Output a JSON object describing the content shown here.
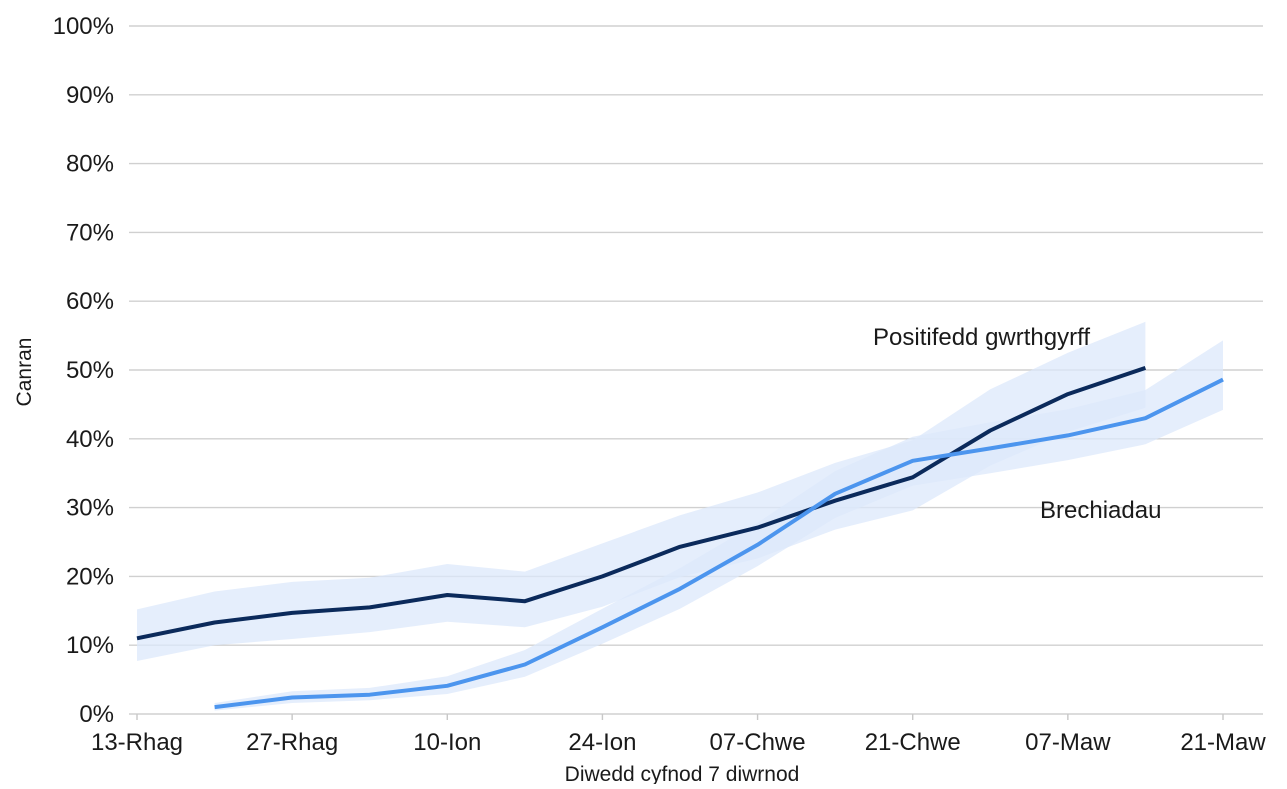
{
  "chart_data": {
    "type": "line",
    "title": "",
    "xlabel": "Diwedd cyfnod 7 diwrnod",
    "ylabel": "Canran",
    "grid": true,
    "legend": "none (series labelled inline)",
    "ylim": [
      0,
      100
    ],
    "yticks": [
      "0%",
      "10%",
      "20%",
      "30%",
      "40%",
      "50%",
      "60%",
      "70%",
      "80%",
      "90%",
      "100%"
    ],
    "categories": [
      "13-Rhag",
      "20-Rhag",
      "27-Rhag",
      "03-Ion",
      "10-Ion",
      "17-Ion",
      "24-Ion",
      "31-Ion",
      "07-Chwe",
      "14-Chwe",
      "21-Chwe",
      "28-Chwe",
      "07-Maw",
      "14-Maw",
      "21-Maw"
    ],
    "tick_labels": [
      "13-Rhag",
      "27-Rhag",
      "10-Ion",
      "24-Ion",
      "07-Chwe",
      "21-Chwe",
      "07-Maw",
      "21-Maw"
    ],
    "series": [
      {
        "name": "Positifedd gwrthgyrff",
        "color": "#0b2a5b",
        "band_color": "#dce8fb",
        "values": [
          11,
          13.3,
          14.7,
          15.5,
          17.3,
          16.4,
          20,
          24.3,
          27.1,
          31,
          34.4,
          41.2,
          46.5,
          50.3,
          null
        ],
        "lower": [
          7.7,
          10,
          10.9,
          11.9,
          13.4,
          12.6,
          15.6,
          19.9,
          22.6,
          26.8,
          29.6,
          36.1,
          41,
          44.5,
          null
        ],
        "upper": [
          15.2,
          17.8,
          19.2,
          19.8,
          21.8,
          20.7,
          24.8,
          28.9,
          32.2,
          36.5,
          39.8,
          47.2,
          52.5,
          57,
          null
        ]
      },
      {
        "name": "Brechiadau",
        "color": "#4c95ee",
        "band_color": "#dce8fb",
        "values": [
          null,
          1,
          2.4,
          2.8,
          4.1,
          7.2,
          12.6,
          18.2,
          24.6,
          32,
          36.8,
          38.6,
          40.5,
          43,
          48.6
        ],
        "lower": [
          null,
          0.5,
          1.6,
          2,
          2.9,
          5.4,
          10.2,
          15.3,
          21.5,
          28.5,
          33.2,
          35,
          36.9,
          39.2,
          44.2
        ],
        "upper": [
          null,
          1.6,
          3.3,
          3.8,
          5.5,
          9.3,
          15.3,
          21.2,
          27.8,
          35.3,
          40.3,
          42.4,
          44.3,
          47.1,
          54.3
        ]
      }
    ]
  }
}
